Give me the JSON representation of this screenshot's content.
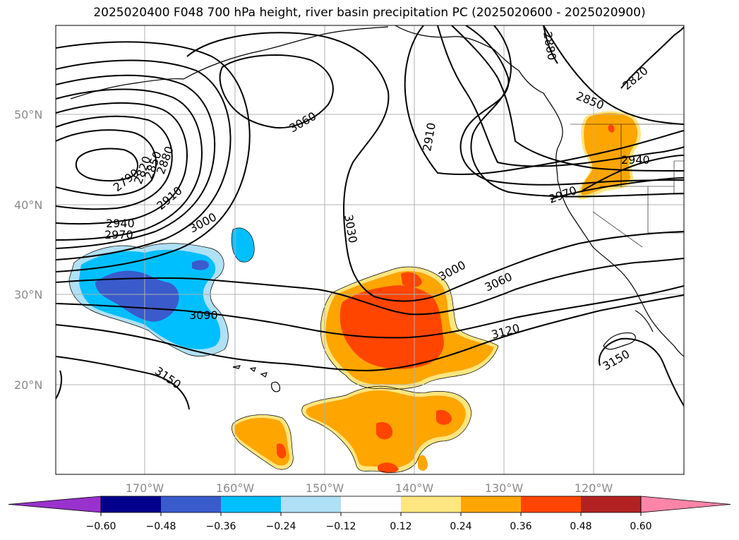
{
  "title": "2025020400 F048 700 hPa height, river basin precipitation PC (2025020600 - 2025020900)",
  "lat_labels": [
    "50°N",
    "40°N",
    "30°N",
    "20°N"
  ],
  "lon_labels": [
    "170°W",
    "160°W",
    "150°W",
    "140°W",
    "130°W",
    "120°W"
  ],
  "contour_labels": [
    "2790",
    "2820",
    "2850",
    "2880",
    "2910",
    "2940",
    "2970",
    "3000",
    "3030",
    "3060",
    "3090",
    "3120",
    "3150",
    "3060",
    "2910",
    "2850",
    "2880",
    "2820",
    "2940",
    "2970",
    "3000",
    "3060",
    "3120",
    "3150"
  ],
  "colorbar": {
    "ticks": [
      "−0.60",
      "−0.48",
      "−0.36",
      "−0.24",
      "−0.12",
      "0.12",
      "0.24",
      "0.36",
      "0.48",
      "0.60"
    ],
    "colors": [
      "#9932cc",
      "#00008b",
      "#3a5bcc",
      "#00bfff",
      "#b0e0f5",
      "#ffffff",
      "#ffe680",
      "#ffa500",
      "#ff4500",
      "#b22222",
      "#ff85a8"
    ]
  },
  "colors": {
    "neg_light": "#b0e0f5",
    "neg_mid": "#00bfff",
    "neg_dark": "#3a5bcc",
    "pos_light": "#ffe680",
    "pos_mid": "#ffa500",
    "pos_dark": "#ff4500"
  }
}
